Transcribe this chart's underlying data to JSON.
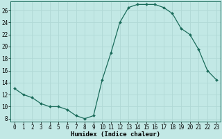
{
  "x": [
    0,
    1,
    2,
    3,
    4,
    5,
    6,
    7,
    8,
    9,
    10,
    11,
    12,
    13,
    14,
    15,
    16,
    17,
    18,
    19,
    20,
    21,
    22,
    23
  ],
  "y": [
    13,
    12,
    11.5,
    10.5,
    10,
    10,
    9.5,
    8.5,
    8,
    8.5,
    14.5,
    19,
    24,
    26.5,
    27,
    27,
    27,
    26.5,
    25.5,
    23,
    22,
    19.5,
    16,
    14.5
  ],
  "line_color": "#1a6b5a",
  "marker_color": "#1a6b5a",
  "bg_color": "#c2e8e5",
  "grid_color": "#b0d8d5",
  "xlabel": "Humidex (Indice chaleur)",
  "xlim": [
    -0.5,
    23.5
  ],
  "ylim": [
    7.5,
    27.5
  ],
  "yticks": [
    8,
    10,
    12,
    14,
    16,
    18,
    20,
    22,
    24,
    26
  ],
  "xticks": [
    0,
    1,
    2,
    3,
    4,
    5,
    6,
    7,
    8,
    9,
    10,
    11,
    12,
    13,
    14,
    15,
    16,
    17,
    18,
    19,
    20,
    21,
    22,
    23
  ],
  "xlabel_fontsize": 6.5,
  "tick_fontsize": 5.5,
  "linewidth": 0.9,
  "markersize": 2.0
}
